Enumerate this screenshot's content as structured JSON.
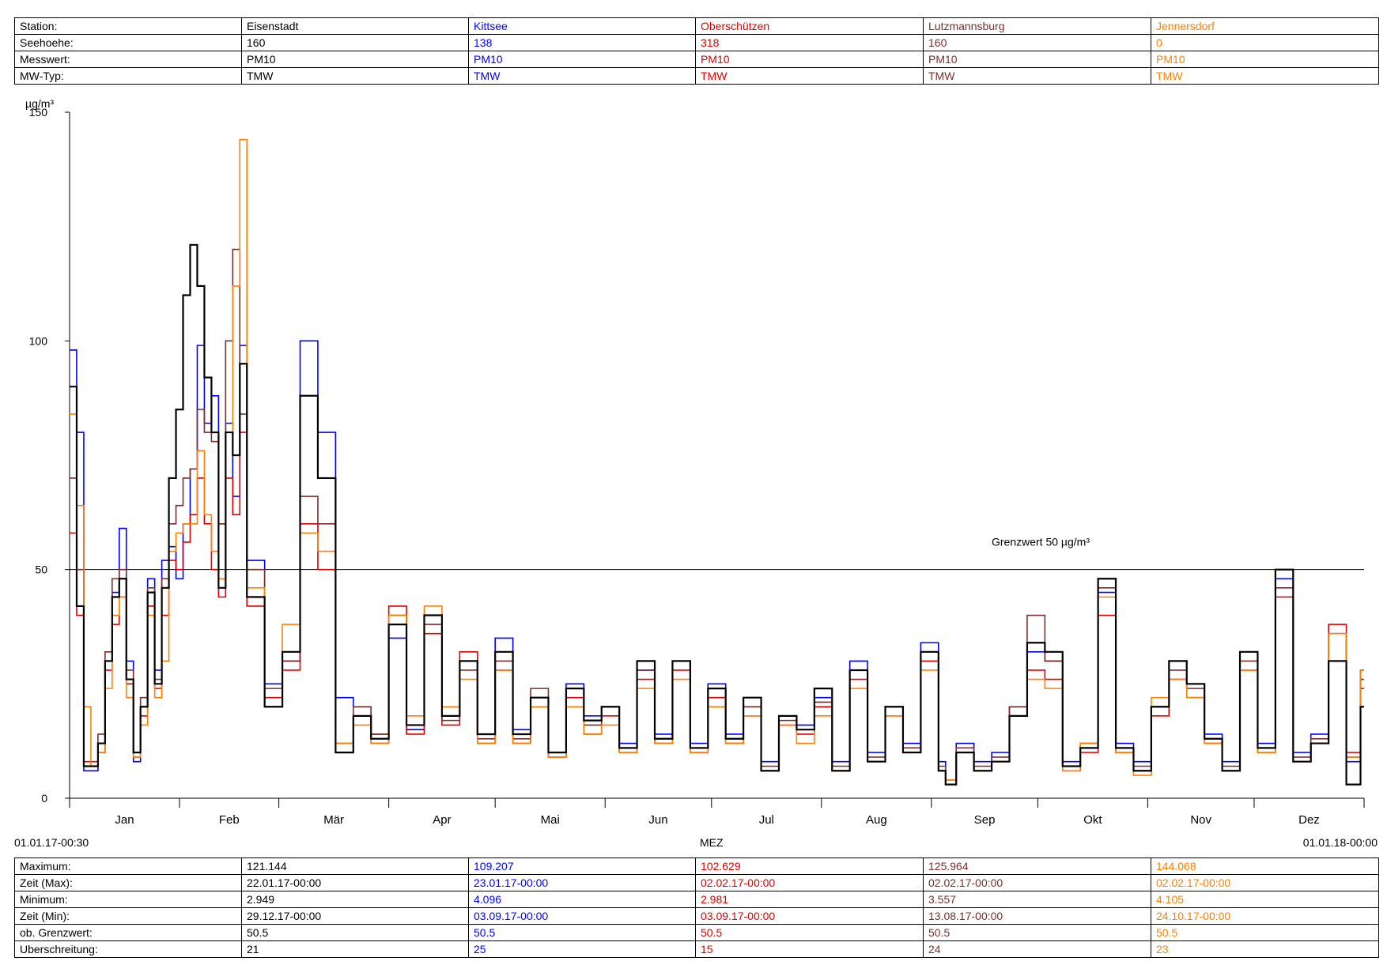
{
  "header": {
    "rows": [
      {
        "label": "Station:",
        "values": [
          "Eisenstadt",
          "Kittsee",
          "Oberschützen",
          "Lutzmannsburg",
          "Jennersdorf"
        ]
      },
      {
        "label": "Seehoehe:",
        "values": [
          "160",
          "138",
          "318",
          "160",
          "0"
        ]
      },
      {
        "label": "Messwert:",
        "values": [
          "PM10",
          "PM10",
          "PM10",
          "PM10",
          "PM10"
        ]
      },
      {
        "label": "MW-Typ:",
        "values": [
          "TMW",
          "TMW",
          "TMW",
          "TMW",
          "TMW"
        ]
      }
    ]
  },
  "stats": {
    "rows": [
      {
        "label": "Maximum:",
        "values": [
          "121.144",
          "109.207",
          "102.629",
          "125.964",
          "144.068"
        ]
      },
      {
        "label": "Zeit (Max):",
        "values": [
          "22.01.17-00:00",
          "23.01.17-00:00",
          "02.02.17-00:00",
          "02.02.17-00:00",
          "02.02.17-00:00"
        ]
      },
      {
        "label": "Minimum:",
        "values": [
          "2.949",
          "4.096",
          "2.981",
          "3.557",
          "4.105"
        ]
      },
      {
        "label": "Zeit (Min):",
        "values": [
          "29.12.17-00:00",
          "03.09.17-00:00",
          "03.09.17-00:00",
          "13.08.17-00:00",
          "24.10.17-00:00"
        ]
      },
      {
        "label": "ob. Grenzwert:",
        "values": [
          "50.5",
          "50.5",
          "50.5",
          "50.5",
          "50.5"
        ]
      },
      {
        "label": "Uberschreitung:",
        "values": [
          "21",
          "25",
          "15",
          "24",
          "23"
        ]
      }
    ]
  },
  "colors": {
    "Eisenstadt": "#000000",
    "Kittsee": "#0000ff",
    "Oberschützen": "#dd0000",
    "Lutzmannsburg": "#7a2e2e",
    "Jennersdorf": "#ff8000"
  },
  "time_range": {
    "start": "01.01.17-00:30",
    "end": "01.01.18-00:00",
    "axis_label": "MEZ"
  },
  "chart_data": {
    "type": "line",
    "ylabel": "µg/m³",
    "ylim": [
      0,
      150
    ],
    "yticks": [
      0,
      50,
      100,
      150
    ],
    "x_unit": "day of year 2017",
    "xlim": [
      0,
      365
    ],
    "months": [
      "Jan",
      "Feb",
      "Mär",
      "Apr",
      "Mai",
      "Jun",
      "Jul",
      "Aug",
      "Sep",
      "Okt",
      "Nov",
      "Dez"
    ],
    "threshold": {
      "value": 50,
      "label": "Grenzwert 50 µg/m³"
    },
    "step": true,
    "grid": false,
    "series": [
      {
        "name": "Kittsee",
        "color": "#0000ff",
        "x": [
          0,
          2,
          4,
          6,
          8,
          10,
          12,
          14,
          16,
          18,
          20,
          22,
          24,
          26,
          28,
          30,
          32,
          34,
          36,
          38,
          40,
          42,
          44,
          46,
          48,
          50,
          55,
          60,
          65,
          70,
          75,
          80,
          85,
          90,
          95,
          100,
          105,
          110,
          115,
          120,
          125,
          130,
          135,
          140,
          145,
          150,
          155,
          160,
          165,
          170,
          175,
          180,
          185,
          190,
          195,
          200,
          205,
          210,
          215,
          220,
          225,
          230,
          235,
          240,
          245,
          247,
          250,
          255,
          260,
          265,
          270,
          275,
          280,
          285,
          290,
          295,
          300,
          305,
          310,
          315,
          320,
          325,
          330,
          335,
          340,
          345,
          350,
          355,
          360,
          364
        ],
        "y": [
          98,
          80,
          6,
          6,
          10,
          30,
          45,
          59,
          30,
          8,
          20,
          48,
          28,
          52,
          55,
          48,
          60,
          72,
          99,
          82,
          88,
          60,
          82,
          66,
          99,
          52,
          25,
          30,
          100,
          80,
          22,
          20,
          12,
          35,
          15,
          40,
          18,
          30,
          12,
          35,
          15,
          22,
          10,
          25,
          18,
          20,
          12,
          28,
          14,
          30,
          12,
          25,
          14,
          20,
          8,
          18,
          16,
          22,
          8,
          30,
          10,
          20,
          12,
          34,
          8,
          4,
          12,
          8,
          10,
          20,
          32,
          30,
          8,
          12,
          45,
          12,
          8,
          20,
          30,
          25,
          14,
          8,
          32,
          12,
          48,
          10,
          14,
          36,
          8,
          28
        ]
      },
      {
        "name": "Oberschützen",
        "color": "#dd0000",
        "x": [
          0,
          2,
          4,
          6,
          8,
          10,
          12,
          14,
          16,
          18,
          20,
          22,
          24,
          26,
          28,
          30,
          32,
          34,
          36,
          38,
          40,
          42,
          44,
          46,
          48,
          50,
          55,
          60,
          65,
          70,
          75,
          80,
          85,
          90,
          95,
          100,
          105,
          110,
          115,
          120,
          125,
          130,
          135,
          140,
          145,
          150,
          155,
          160,
          165,
          170,
          175,
          180,
          185,
          190,
          195,
          200,
          205,
          210,
          215,
          220,
          225,
          230,
          235,
          240,
          245,
          247,
          250,
          255,
          260,
          265,
          270,
          275,
          280,
          285,
          290,
          295,
          300,
          305,
          310,
          315,
          320,
          325,
          330,
          335,
          340,
          345,
          350,
          355,
          360,
          364
        ],
        "y": [
          58,
          40,
          8,
          8,
          12,
          28,
          38,
          44,
          25,
          10,
          18,
          42,
          24,
          40,
          52,
          50,
          56,
          62,
          70,
          60,
          50,
          44,
          70,
          62,
          80,
          42,
          22,
          28,
          60,
          50,
          10,
          18,
          14,
          42,
          14,
          36,
          16,
          32,
          14,
          28,
          12,
          20,
          9,
          22,
          14,
          18,
          10,
          26,
          12,
          28,
          10,
          22,
          12,
          18,
          6,
          16,
          14,
          20,
          6,
          26,
          8,
          18,
          10,
          30,
          6,
          3,
          10,
          6,
          8,
          18,
          28,
          26,
          6,
          10,
          40,
          10,
          6,
          18,
          26,
          22,
          12,
          6,
          28,
          10,
          44,
          8,
          12,
          38,
          10,
          24
        ]
      },
      {
        "name": "Lutzmannsburg",
        "color": "#7a2e2e",
        "x": [
          0,
          2,
          4,
          6,
          8,
          10,
          12,
          14,
          16,
          18,
          20,
          22,
          24,
          26,
          28,
          30,
          32,
          34,
          36,
          38,
          40,
          42,
          44,
          46,
          48,
          50,
          55,
          60,
          65,
          70,
          75,
          80,
          85,
          90,
          95,
          100,
          105,
          110,
          115,
          120,
          125,
          130,
          135,
          140,
          145,
          150,
          155,
          160,
          165,
          170,
          175,
          180,
          185,
          190,
          195,
          200,
          205,
          210,
          215,
          220,
          225,
          230,
          235,
          240,
          245,
          247,
          250,
          255,
          260,
          265,
          270,
          275,
          280,
          285,
          290,
          295,
          300,
          305,
          310,
          315,
          320,
          325,
          330,
          335,
          340,
          345,
          350,
          355,
          360,
          364
        ],
        "y": [
          70,
          50,
          7,
          7,
          14,
          32,
          48,
          50,
          28,
          9,
          22,
          46,
          26,
          48,
          60,
          64,
          70,
          72,
          85,
          80,
          78,
          60,
          100,
          120,
          84,
          50,
          24,
          30,
          66,
          60,
          12,
          20,
          14,
          40,
          16,
          38,
          17,
          28,
          13,
          30,
          13,
          24,
          10,
          24,
          16,
          20,
          11,
          28,
          13,
          30,
          11,
          24,
          13,
          20,
          7,
          17,
          15,
          21,
          7,
          28,
          9,
          20,
          11,
          32,
          7,
          4,
          11,
          7,
          9,
          20,
          40,
          30,
          7,
          11,
          46,
          11,
          7,
          20,
          28,
          24,
          13,
          7,
          30,
          11,
          46,
          9,
          13,
          30,
          9,
          26
        ]
      },
      {
        "name": "Jennersdorf",
        "color": "#ff8000",
        "x": [
          0,
          2,
          4,
          6,
          8,
          10,
          12,
          14,
          16,
          18,
          20,
          22,
          24,
          26,
          28,
          30,
          32,
          34,
          36,
          38,
          40,
          42,
          44,
          46,
          48,
          50,
          55,
          60,
          65,
          70,
          75,
          80,
          85,
          90,
          95,
          100,
          105,
          110,
          115,
          120,
          125,
          130,
          135,
          140,
          145,
          150,
          155,
          160,
          165,
          170,
          175,
          180,
          185,
          190,
          195,
          200,
          205,
          210,
          215,
          220,
          225,
          230,
          235,
          240,
          245,
          247,
          250,
          255,
          260,
          265,
          270,
          275,
          280,
          285,
          290,
          295,
          300,
          305,
          310,
          315,
          320,
          325,
          330,
          335,
          340,
          345,
          350,
          355,
          360,
          364
        ],
        "y": [
          84,
          64,
          20,
          7,
          10,
          24,
          40,
          44,
          22,
          9,
          16,
          40,
          22,
          30,
          54,
          58,
          60,
          60,
          76,
          62,
          54,
          48,
          80,
          112,
          144,
          46,
          20,
          38,
          58,
          54,
          12,
          16,
          12,
          40,
          18,
          42,
          20,
          26,
          12,
          28,
          12,
          20,
          9,
          20,
          14,
          16,
          10,
          24,
          12,
          26,
          10,
          20,
          12,
          18,
          6,
          16,
          12,
          18,
          6,
          24,
          8,
          18,
          10,
          28,
          6,
          4,
          10,
          6,
          8,
          18,
          26,
          24,
          6,
          12,
          44,
          10,
          5,
          22,
          26,
          22,
          12,
          6,
          28,
          10,
          50,
          8,
          12,
          36,
          9,
          28
        ]
      },
      {
        "name": "Eisenstadt",
        "color": "#000000",
        "x": [
          0,
          2,
          4,
          6,
          8,
          10,
          12,
          14,
          16,
          18,
          20,
          22,
          24,
          26,
          28,
          30,
          32,
          34,
          36,
          38,
          40,
          42,
          44,
          46,
          48,
          50,
          55,
          60,
          65,
          70,
          75,
          80,
          85,
          90,
          95,
          100,
          105,
          110,
          115,
          120,
          125,
          130,
          135,
          140,
          145,
          150,
          155,
          160,
          165,
          170,
          175,
          180,
          185,
          190,
          195,
          200,
          205,
          210,
          215,
          220,
          225,
          230,
          235,
          240,
          245,
          247,
          250,
          255,
          260,
          265,
          270,
          275,
          280,
          285,
          290,
          295,
          300,
          305,
          310,
          315,
          320,
          325,
          330,
          335,
          340,
          345,
          350,
          355,
          360,
          364
        ],
        "y": [
          90,
          42,
          7,
          7,
          12,
          30,
          44,
          48,
          26,
          10,
          20,
          45,
          25,
          46,
          70,
          85,
          110,
          121,
          112,
          92,
          80,
          46,
          80,
          75,
          95,
          44,
          20,
          32,
          88,
          70,
          10,
          18,
          13,
          38,
          16,
          40,
          18,
          30,
          14,
          32,
          14,
          22,
          10,
          24,
          17,
          20,
          11,
          30,
          13,
          30,
          11,
          24,
          13,
          22,
          6,
          18,
          15,
          24,
          6,
          28,
          8,
          20,
          10,
          32,
          6,
          3,
          10,
          6,
          8,
          18,
          34,
          32,
          7,
          11,
          48,
          11,
          6,
          20,
          30,
          25,
          13,
          6,
          32,
          11,
          50,
          8,
          12,
          30,
          3,
          20
        ]
      }
    ]
  }
}
